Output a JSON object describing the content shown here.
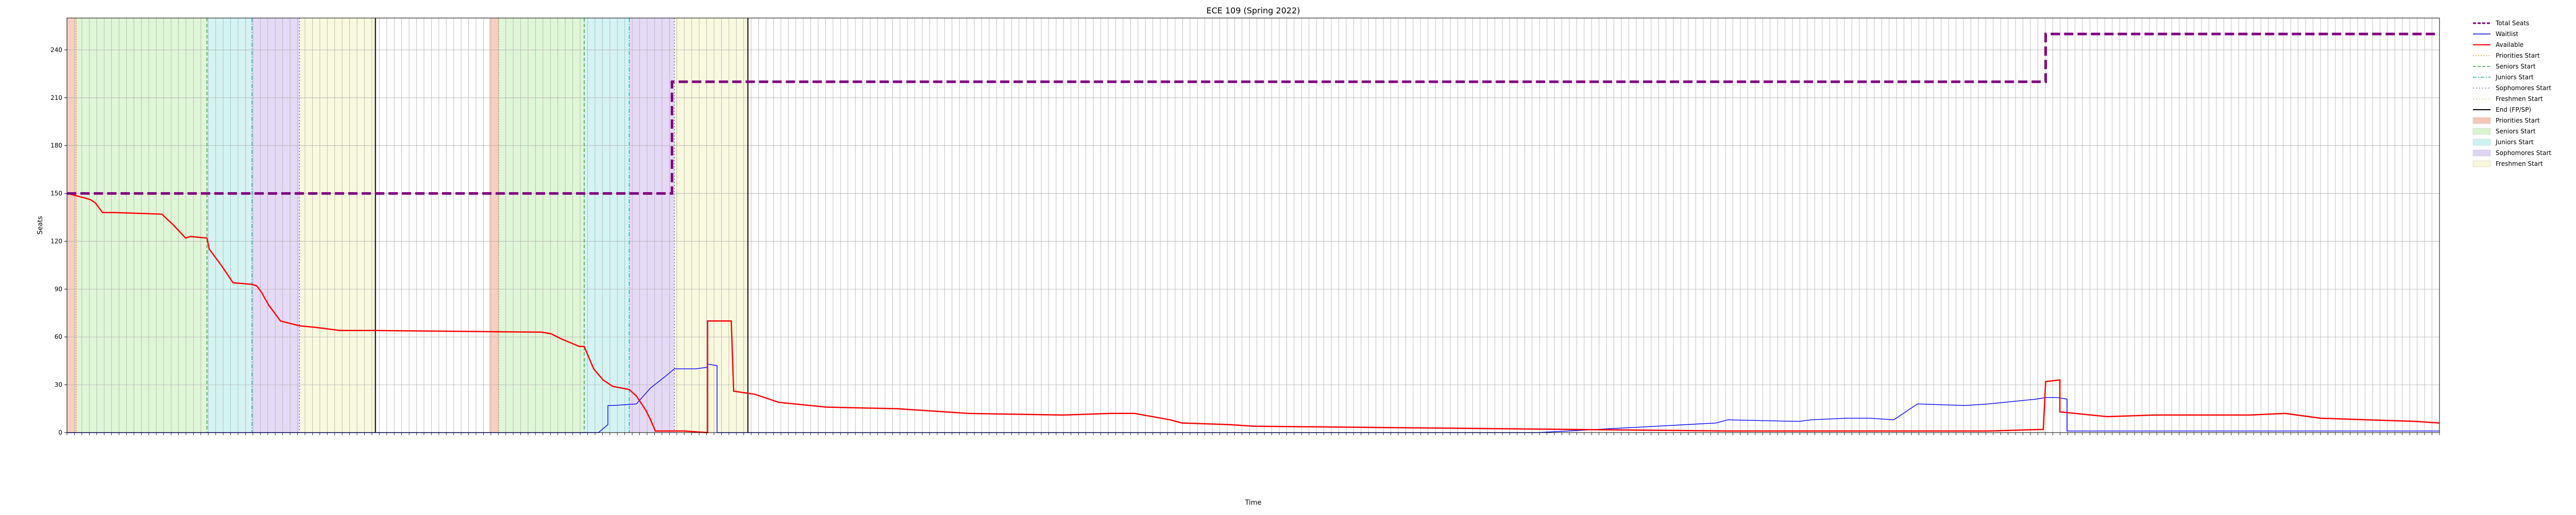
{
  "chart_data": {
    "type": "line",
    "title": "ECE 109 (Spring 2022)",
    "xlabel": "Time",
    "ylabel": "Seats",
    "ylim": [
      0,
      260
    ],
    "yticks": [
      0,
      30,
      60,
      90,
      120,
      150,
      180,
      210,
      240
    ],
    "xlim": [
      0,
      100
    ],
    "grid": true,
    "legend_position": "outside-top-right",
    "x_tick_count": 320,
    "phases": [
      {
        "name": "Priorities Start",
        "start": 0.0,
        "end": 0.4,
        "color": "#f4c7b8"
      },
      {
        "name": "Seniors Start",
        "start": 0.4,
        "end": 5.9,
        "color": "#d9f5d0"
      },
      {
        "name": "Juniors Start",
        "start": 5.9,
        "end": 7.8,
        "color": "#cdf2f2"
      },
      {
        "name": "Sophomores Start",
        "start": 7.8,
        "end": 9.8,
        "color": "#e0d4f5"
      },
      {
        "name": "Freshmen Start",
        "start": 9.8,
        "end": 13.0,
        "color": "#f8f8d8"
      },
      {
        "name": "Priorities Start",
        "start": 17.8,
        "end": 18.2,
        "color": "#f4c7b8"
      },
      {
        "name": "Seniors Start",
        "start": 18.2,
        "end": 21.8,
        "color": "#d9f5d0"
      },
      {
        "name": "Juniors Start",
        "start": 21.8,
        "end": 23.7,
        "color": "#cdf2f2"
      },
      {
        "name": "Sophomores Start",
        "start": 23.7,
        "end": 25.6,
        "color": "#e0d4f5"
      },
      {
        "name": "Freshmen Start",
        "start": 25.6,
        "end": 28.7,
        "color": "#f8f8d8"
      }
    ],
    "phase_lines": [
      {
        "name": "Priorities Start",
        "x": 0.4,
        "color": "#e6a020",
        "dash": "2,3"
      },
      {
        "name": "Seniors Start",
        "x": 5.9,
        "color": "#3aa83a",
        "dash": "7,4"
      },
      {
        "name": "Juniors Start",
        "x": 7.8,
        "color": "#20b0b0",
        "dash": "8,3,2,3"
      },
      {
        "name": "Sophomores Start",
        "x": 9.8,
        "color": "#8a4fd0",
        "dash": "2,4"
      },
      {
        "name": "Priorities Start",
        "x": 18.2,
        "color": "#e6a020",
        "dash": "2,3"
      },
      {
        "name": "Seniors Start",
        "x": 21.8,
        "color": "#3aa83a",
        "dash": "7,4"
      },
      {
        "name": "Juniors Start",
        "x": 23.7,
        "color": "#20b0b0",
        "dash": "8,3,2,3"
      },
      {
        "name": "Sophomores Start",
        "x": 25.6,
        "color": "#8a4fd0",
        "dash": "2,4"
      }
    ],
    "end_lines": [
      13.0,
      28.7
    ],
    "series": [
      {
        "name": "Total Seats",
        "color": "#800080",
        "style": "dashed",
        "x": [
          0,
          25.5,
          25.5,
          83.4,
          83.4,
          100
        ],
        "y": [
          150,
          150,
          220,
          220,
          250,
          250
        ]
      },
      {
        "name": "Waitlist",
        "color": "#0000ff",
        "style": "solid",
        "x": [
          0,
          22.4,
          22.8,
          22.8,
          23.0,
          24.0,
          24.6,
          25.2,
          25.6,
          26.5,
          27.0,
          27.0,
          27.4,
          27.4,
          28.7,
          62,
          69.5,
          70.0,
          73,
          73.5,
          75,
          76,
          77,
          78,
          80,
          81,
          83.0,
          83.4,
          83.9,
          84.3,
          84.3,
          100
        ],
        "y": [
          0,
          0,
          5,
          17,
          17,
          18,
          28,
          35,
          40,
          40,
          41,
          43,
          42,
          0,
          0,
          0,
          6,
          8,
          7,
          8,
          9,
          9,
          8,
          18,
          17,
          18,
          21,
          22,
          22,
          21,
          1,
          1
        ]
      },
      {
        "name": "Available",
        "color": "#ff0000",
        "style": "solid",
        "x": [
          0,
          0.8,
          1.0,
          1.2,
          1.5,
          2.0,
          4.0,
          4.5,
          5.0,
          5.2,
          5.9,
          6.0,
          6.5,
          7.0,
          7.8,
          8.0,
          8.2,
          8.5,
          9.0,
          9.8,
          10.5,
          11.5,
          13.0,
          20.0,
          20.4,
          20.8,
          21.6,
          21.8,
          22.2,
          22.6,
          23.0,
          23.7,
          24.0,
          24.4,
          24.6,
          24.8,
          26.0,
          27.0,
          27.0,
          28.0,
          28.1,
          29.0,
          30.0,
          32.0,
          35.0,
          38.0,
          42.0,
          44.0,
          45.0,
          46.5,
          47.0,
          49.0,
          50.0,
          70.0,
          81.0,
          83.3,
          83.4,
          84.0,
          84.0,
          86.0,
          88.0,
          92.0,
          93.5,
          95.0,
          97.0,
          99.0,
          100
        ],
        "y": [
          150,
          147,
          146,
          144,
          138,
          138,
          137,
          130,
          122,
          123,
          122,
          115,
          105,
          94,
          93,
          92,
          88,
          80,
          70,
          67,
          66,
          64,
          64,
          63,
          62,
          59,
          54,
          54,
          40,
          33,
          29,
          27,
          23,
          14,
          8,
          1,
          1,
          0,
          70,
          70,
          26,
          24,
          19,
          16,
          15,
          12,
          11,
          12,
          12,
          8,
          6,
          5,
          4,
          1,
          1,
          2,
          32,
          33,
          13,
          10,
          11,
          11,
          12,
          9,
          8,
          7,
          6
        ]
      }
    ],
    "legend": [
      {
        "label": "Total Seats",
        "kind": "line",
        "color": "#800080",
        "dash": "6,3",
        "width": 3
      },
      {
        "label": "Waitlist",
        "kind": "line",
        "color": "#0000ff",
        "dash": "",
        "width": 1.5
      },
      {
        "label": "Available",
        "kind": "line",
        "color": "#ff0000",
        "dash": "",
        "width": 2
      },
      {
        "label": "Priorities Start",
        "kind": "line",
        "color": "#e6a020",
        "dash": "2,3",
        "width": 1.5
      },
      {
        "label": "Seniors Start",
        "kind": "line",
        "color": "#3aa83a",
        "dash": "6,3",
        "width": 1.5
      },
      {
        "label": "Juniors Start",
        "kind": "line",
        "color": "#20b0b0",
        "dash": "7,3,2,3",
        "width": 1.5
      },
      {
        "label": "Sophomores Start",
        "kind": "line",
        "color": "#8a4fd0",
        "dash": "2,4",
        "width": 1.5
      },
      {
        "label": "Freshmen Start",
        "kind": "line",
        "color": "#d0d060",
        "dash": "2,4",
        "width": 1.5
      },
      {
        "label": "End (FP/SP)",
        "kind": "line",
        "color": "#000000",
        "dash": "",
        "width": 2
      },
      {
        "label": "Priorities Start",
        "kind": "patch",
        "color": "#f4c7b8"
      },
      {
        "label": "Seniors Start",
        "kind": "patch",
        "color": "#d9f5d0"
      },
      {
        "label": "Juniors Start",
        "kind": "patch",
        "color": "#cdf2f2"
      },
      {
        "label": "Sophomores Start",
        "kind": "patch",
        "color": "#e0d4f5"
      },
      {
        "label": "Freshmen Start",
        "kind": "patch",
        "color": "#f8f8d8"
      }
    ]
  }
}
